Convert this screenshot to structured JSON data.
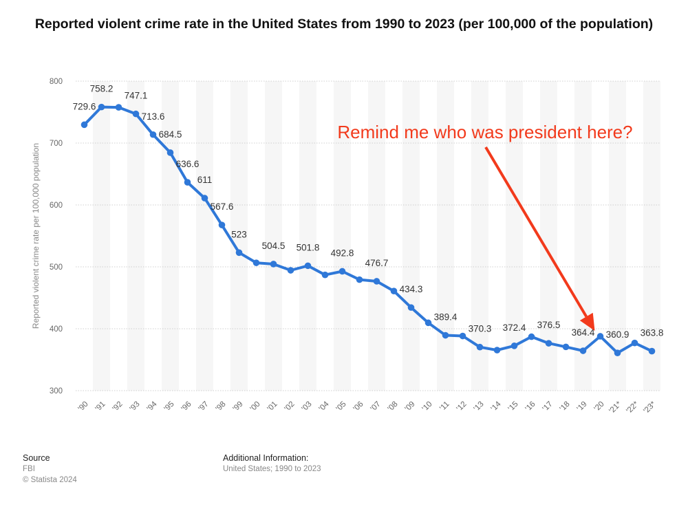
{
  "title": "Reported violent crime rate in the United States from 1990 to 2023 (per 100,000 of the population)",
  "chart_data": {
    "type": "line",
    "categories": [
      "'90",
      "'91",
      "'92",
      "'93",
      "'94",
      "'95",
      "'96",
      "'97",
      "'98",
      "'99",
      "'00",
      "'01",
      "'02",
      "'03",
      "'04",
      "'05",
      "'06",
      "'07",
      "'08",
      "'09",
      "'10",
      "'11",
      "'12",
      "'13",
      "'14",
      "'15",
      "'16",
      "'17",
      "'18",
      "'19",
      "'20",
      "'21*",
      "'22*",
      "'23*"
    ],
    "values": [
      729.6,
      758.2,
      757.7,
      747.1,
      713.6,
      684.5,
      636.6,
      611,
      567.6,
      523,
      506.5,
      504.5,
      494.4,
      501.8,
      487,
      492.8,
      479.3,
      476.7,
      460.9,
      434.3,
      409.6,
      389.4,
      388.3,
      370.3,
      365.5,
      372.4,
      387.1,
      376.5,
      370.7,
      364.4,
      387.8,
      360.9,
      377,
      363.8
    ],
    "data_labels": [
      {
        "index": 0,
        "text": "729.6"
      },
      {
        "index": 1,
        "text": "758.2"
      },
      {
        "index": 3,
        "text": "747.1"
      },
      {
        "index": 4,
        "text": "713.6"
      },
      {
        "index": 5,
        "text": "684.5"
      },
      {
        "index": 6,
        "text": "636.6"
      },
      {
        "index": 7,
        "text": "611"
      },
      {
        "index": 8,
        "text": "567.6"
      },
      {
        "index": 9,
        "text": "523"
      },
      {
        "index": 11,
        "text": "504.5"
      },
      {
        "index": 13,
        "text": "501.8"
      },
      {
        "index": 15,
        "text": "492.8"
      },
      {
        "index": 17,
        "text": "476.7"
      },
      {
        "index": 19,
        "text": "434.3"
      },
      {
        "index": 21,
        "text": "389.4"
      },
      {
        "index": 23,
        "text": "370.3"
      },
      {
        "index": 25,
        "text": "372.4"
      },
      {
        "index": 27,
        "text": "376.5"
      },
      {
        "index": 29,
        "text": "364.4"
      },
      {
        "index": 31,
        "text": "360.9"
      },
      {
        "index": 33,
        "text": "363.8"
      }
    ],
    "y_ticks": [
      "800",
      "700",
      "600",
      "500",
      "400",
      "300"
    ],
    "ylim": [
      300,
      800
    ],
    "ylabel": "Reported violent crime rate per 100,000 population",
    "xlabel": "",
    "series_color": "#2f78d8",
    "grid": true
  },
  "annotation": {
    "text": "Remind me who was president here?",
    "color": "#f23a1c",
    "arrow_target_index": 30
  },
  "footer": {
    "source_heading": "Source",
    "source_name": "FBI",
    "copyright": "© Statista 2024",
    "additional_heading": "Additional Information:",
    "additional_text": "United States; 1990 to 2023"
  }
}
